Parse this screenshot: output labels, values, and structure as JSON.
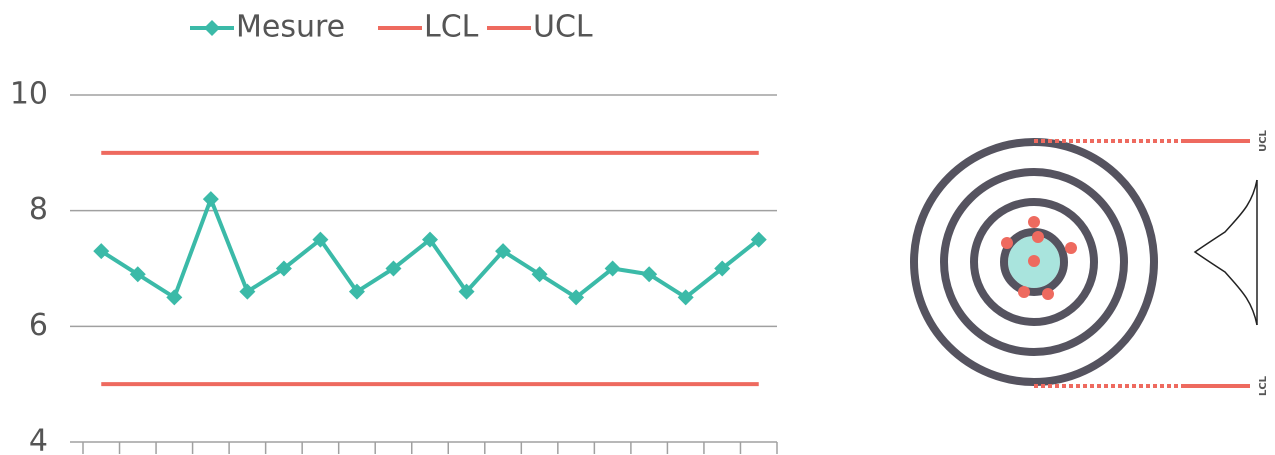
{
  "chart_data": {
    "type": "line",
    "categories": [
      null,
      null,
      null,
      null,
      null,
      null,
      null,
      null,
      null,
      null,
      null,
      null,
      null,
      null,
      null,
      null,
      null,
      null,
      null
    ],
    "series": [
      {
        "name": "Mesure",
        "color": "#3bbaa8",
        "marker": "diamond",
        "values": [
          7.3,
          6.9,
          6.5,
          8.2,
          6.6,
          7.0,
          7.5,
          6.6,
          7.0,
          7.5,
          6.6,
          7.3,
          6.9,
          6.5,
          7.0,
          6.9,
          6.5,
          7.0,
          7.5
        ]
      },
      {
        "name": "LCL",
        "color": "#ee6a5f",
        "values": [
          5,
          5,
          5,
          5,
          5,
          5,
          5,
          5,
          5,
          5,
          5,
          5,
          5,
          5,
          5,
          5,
          5,
          5,
          5
        ]
      },
      {
        "name": "UCL",
        "color": "#ee6a5f",
        "values": [
          9,
          9,
          9,
          9,
          9,
          9,
          9,
          9,
          9,
          9,
          9,
          9,
          9,
          9,
          9,
          9,
          9,
          9,
          9
        ]
      }
    ],
    "ylim": [
      4,
      10
    ],
    "yticks": [
      4,
      6,
      8,
      10
    ],
    "grid": true,
    "legend": "top",
    "annotations": [
      "UCL",
      "LCL"
    ]
  }
}
